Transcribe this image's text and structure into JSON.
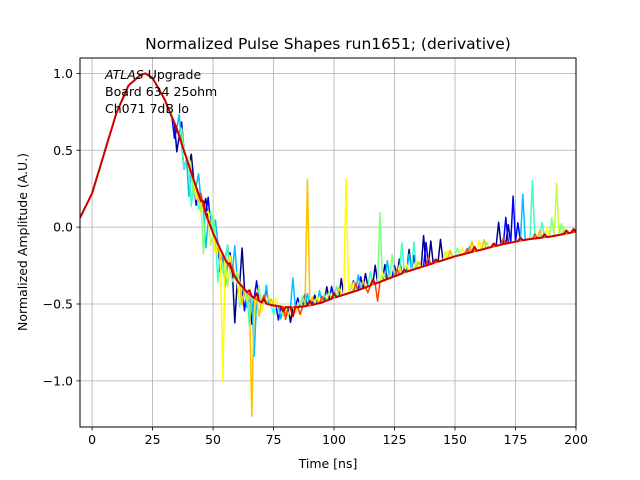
{
  "chart_data": {
    "type": "line",
    "title": "Normalized Pulse Shapes run1651; (derivative)",
    "xlabel": "Time [ns]",
    "ylabel": "Normalized Amplitude (A.U.)",
    "xlim": [
      -5,
      200
    ],
    "ylim": [
      -1.3,
      1.1
    ],
    "grid": true,
    "x_ticks": [
      0,
      25,
      50,
      75,
      100,
      125,
      150,
      175,
      200
    ],
    "x_tick_labels": [
      "0",
      "25",
      "50",
      "75",
      "100",
      "125",
      "150",
      "175",
      "200"
    ],
    "y_ticks": [
      -1.0,
      -0.5,
      0.0,
      0.5,
      1.0
    ],
    "y_tick_labels": [
      "−1.0",
      "−0.5",
      "0.0",
      "0.5",
      "1.0"
    ],
    "annotation": {
      "lines": [
        {
          "italic": "ATLAS",
          "normal": " Upgrade"
        },
        {
          "italic": "",
          "normal": " Board 634 25ohm"
        },
        {
          "italic": "",
          "normal": " Ch071 7dB lo"
        }
      ]
    },
    "base_curve": {
      "x": [
        -5,
        0,
        5,
        10,
        15,
        20,
        22,
        25,
        30,
        35,
        40,
        45,
        50,
        55,
        60,
        65,
        70,
        75,
        80,
        85,
        90,
        95,
        100,
        110,
        120,
        130,
        140,
        150,
        160,
        170,
        180,
        190,
        200
      ],
      "y": [
        0.06,
        0.22,
        0.48,
        0.74,
        0.92,
        0.99,
        1.0,
        0.97,
        0.83,
        0.64,
        0.4,
        0.17,
        -0.04,
        -0.21,
        -0.35,
        -0.44,
        -0.49,
        -0.51,
        -0.52,
        -0.52,
        -0.51,
        -0.49,
        -0.46,
        -0.41,
        -0.35,
        -0.29,
        -0.24,
        -0.19,
        -0.15,
        -0.11,
        -0.08,
        -0.06,
        -0.03
      ]
    },
    "series": [
      {
        "name": "ch-series-1",
        "color": "#00008f",
        "spikes": [
          [
            35,
            -0.15
          ],
          [
            38,
            -0.12
          ],
          [
            41,
            0.12
          ],
          [
            47,
            0.1
          ],
          [
            56,
            0.12
          ],
          [
            59,
            -0.3
          ],
          [
            62,
            0.25
          ],
          [
            66,
            -0.18
          ],
          [
            72,
            0.1
          ],
          [
            82,
            -0.1
          ],
          [
            88,
            0.08
          ],
          [
            92,
            0.06
          ],
          [
            97,
            0.09
          ],
          [
            103,
            0.11
          ],
          [
            108,
            0.07
          ],
          [
            113,
            0.09
          ],
          [
            117,
            0.12
          ],
          [
            121,
            0.1
          ],
          [
            127,
            0.1
          ],
          [
            131,
            0.14
          ],
          [
            137,
            0.2
          ],
          [
            140,
            0.15
          ],
          [
            144,
            0.14
          ],
          [
            168,
            0.15
          ],
          [
            172,
            0.12
          ]
        ]
      },
      {
        "name": "ch-series-2",
        "color": "#0000ff",
        "spikes": [
          [
            34,
            -0.1
          ],
          [
            37,
            0.14
          ],
          [
            43,
            -0.12
          ],
          [
            48,
            0.15
          ],
          [
            53,
            -0.15
          ],
          [
            57,
            0.1
          ],
          [
            63,
            -0.14
          ],
          [
            68,
            0.12
          ],
          [
            77,
            -0.09
          ],
          [
            85,
            0.06
          ],
          [
            99,
            0.08
          ],
          [
            111,
            0.08
          ],
          [
            125,
            0.07
          ],
          [
            133,
            0.09
          ],
          [
            138,
            0.15
          ],
          [
            171,
            0.17
          ],
          [
            174,
            0.3
          ],
          [
            176,
            0.12
          ]
        ]
      },
      {
        "name": "ch-series-3",
        "color": "#00bfff",
        "spikes": [
          [
            36,
            0.14
          ],
          [
            40,
            -0.2
          ],
          [
            44,
            0.13
          ],
          [
            47,
            -0.22
          ],
          [
            51,
            0.12
          ],
          [
            55,
            -0.18
          ],
          [
            59,
            0.2
          ],
          [
            64,
            -0.1
          ],
          [
            67,
            -0.38
          ],
          [
            72,
            0.12
          ],
          [
            78,
            -0.08
          ],
          [
            83,
            0.19
          ],
          [
            89,
            0.08
          ],
          [
            94,
            0.08
          ],
          [
            110,
            0.1
          ],
          [
            122,
            0.12
          ],
          [
            131,
            0.11
          ],
          [
            156,
            0.04
          ],
          [
            178,
            0.3
          ]
        ]
      },
      {
        "name": "ch-series-4",
        "color": "#40ffbf",
        "spikes": [
          [
            38,
            -0.12
          ],
          [
            41,
            -0.22
          ],
          [
            44,
            -0.1
          ],
          [
            49,
            0.1
          ],
          [
            52,
            -0.25
          ],
          [
            56,
            0.12
          ],
          [
            61,
            -0.15
          ],
          [
            65,
            -0.2
          ],
          [
            75,
            -0.06
          ],
          [
            87,
            0.07
          ],
          [
            101,
            0.07
          ],
          [
            115,
            0.09
          ],
          [
            128,
            0.2
          ],
          [
            133,
            0.18
          ],
          [
            148,
            0.04
          ],
          [
            182,
            0.38
          ],
          [
            186,
            0.1
          ]
        ]
      },
      {
        "name": "ch-series-5",
        "color": "#80ff80",
        "spikes": [
          [
            37,
            0.1
          ],
          [
            42,
            -0.1
          ],
          [
            46,
            -0.3
          ],
          [
            50,
            0.12
          ],
          [
            54,
            -0.12
          ],
          [
            58,
            -0.06
          ],
          [
            69,
            0.1
          ],
          [
            79,
            -0.06
          ],
          [
            96,
            0.05
          ],
          [
            119,
            0.45
          ],
          [
            124,
            0.15
          ],
          [
            151,
            0.05
          ],
          [
            163,
            0.04
          ],
          [
            190,
            0.12
          ],
          [
            194,
            0.07
          ]
        ]
      },
      {
        "name": "ch-series-6",
        "color": "#bfff40",
        "spikes": [
          [
            40,
            0.06
          ],
          [
            45,
            -0.08
          ],
          [
            49,
            -0.12
          ],
          [
            56,
            -0.15
          ],
          [
            60,
            0.06
          ],
          [
            64,
            -0.06
          ],
          [
            73,
            0.05
          ],
          [
            81,
            -0.06
          ],
          [
            86,
            0.04
          ],
          [
            98,
            0.05
          ],
          [
            107,
            0.06
          ],
          [
            127,
            0.06
          ],
          [
            134,
            0.05
          ],
          [
            146,
            0.05
          ],
          [
            192,
            0.34
          ],
          [
            195,
            0.05
          ]
        ]
      },
      {
        "name": "ch-series-7",
        "color": "#ffff00",
        "spikes": [
          [
            43,
            -0.08
          ],
          [
            48,
            0.06
          ],
          [
            51,
            -0.1
          ],
          [
            54,
            -0.82
          ],
          [
            57,
            0.08
          ],
          [
            61,
            -0.12
          ],
          [
            70,
            -0.06
          ],
          [
            76,
            0.05
          ],
          [
            84,
            -0.04
          ],
          [
            93,
            0.05
          ],
          [
            105,
            0.75
          ],
          [
            108,
            0.06
          ],
          [
            120,
            0.06
          ],
          [
            130,
            0.05
          ],
          [
            147,
            0.05
          ],
          [
            153,
            0.04
          ],
          [
            160,
            0.06
          ],
          [
            188,
            0.06
          ]
        ]
      },
      {
        "name": "ch-series-8",
        "color": "#ffbf00",
        "spikes": [
          [
            44,
            -0.05
          ],
          [
            53,
            -0.07
          ],
          [
            62,
            -0.12
          ],
          [
            66,
            -0.78
          ],
          [
            69,
            -0.1
          ],
          [
            74,
            0.04
          ],
          [
            80,
            -0.05
          ],
          [
            89,
            0.82
          ],
          [
            91,
            0.05
          ],
          [
            102,
            0.06
          ],
          [
            112,
            0.05
          ],
          [
            135,
            0.04
          ],
          [
            148,
            0.05
          ],
          [
            157,
            0.07
          ],
          [
            162,
            0.06
          ],
          [
            185,
            0.05
          ]
        ]
      },
      {
        "name": "ch-series-9",
        "color": "#ff4000",
        "spikes": [
          [
            45,
            0.05
          ],
          [
            58,
            0.04
          ],
          [
            71,
            0.05
          ],
          [
            80,
            -0.08
          ],
          [
            86,
            -0.05
          ],
          [
            95,
            0.04
          ],
          [
            109,
            0.05
          ],
          [
            114,
            -0.04
          ],
          [
            118,
            -0.12
          ],
          [
            126,
            0.04
          ],
          [
            139,
            0.05
          ],
          [
            155,
            0.03
          ],
          [
            170,
            0.04
          ],
          [
            183,
            0.03
          ]
        ]
      },
      {
        "name": "ch-series-10",
        "color": "#cc0000",
        "spikes": [
          [
            46,
            0.04
          ],
          [
            57,
            0.03
          ],
          [
            65,
            0.03
          ],
          [
            68,
            0.04
          ],
          [
            71,
            0.03
          ],
          [
            79,
            -0.03
          ],
          [
            83,
            -0.06
          ],
          [
            90,
            0.03
          ],
          [
            100,
            0.03
          ],
          [
            116,
            0.03
          ],
          [
            129,
            0.02
          ],
          [
            142,
            0.02
          ],
          [
            158,
            0.03
          ],
          [
            166,
            0.02
          ],
          [
            177,
            0.02
          ],
          [
            187,
            0.02
          ],
          [
            196,
            0.02
          ],
          [
            199,
            0.02
          ]
        ]
      }
    ]
  }
}
